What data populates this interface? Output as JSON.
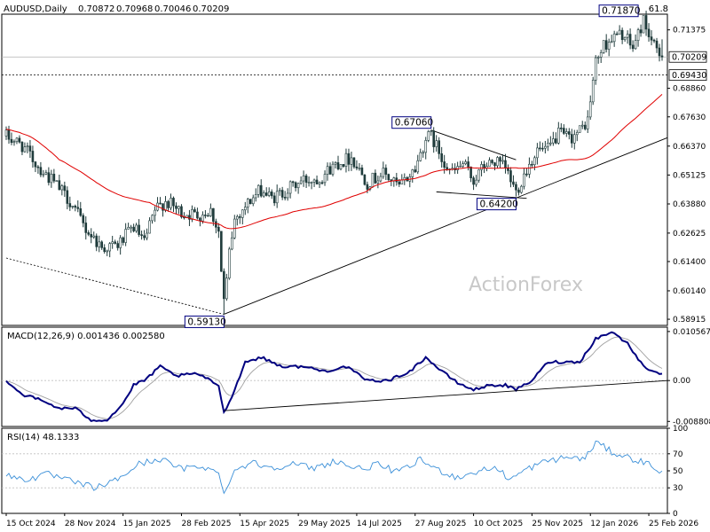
{
  "chart_data": {
    "type": "candlestick",
    "symbol_header": "AUDUSD,Daily",
    "ohlc_header": [
      "0.70872",
      "0.70968",
      "0.70046",
      "0.70209"
    ],
    "top_right_label": "61.8",
    "watermark": "ActionForex",
    "price_axis": {
      "ylim": [
        0.5865,
        0.7205
      ],
      "ticks": [
        "0.71375",
        "0.68860",
        "0.67630",
        "0.66370",
        "0.65125",
        "0.63880",
        "0.62625",
        "0.61400",
        "0.60140",
        "0.58915"
      ]
    },
    "current_price_tag": "0.70209",
    "retrace_level": {
      "value": 0.6943,
      "label": "0.69430"
    },
    "level_boxes": [
      {
        "value": 0.7187,
        "label": "0.71870"
      },
      {
        "value": 0.6706,
        "label": "0.67060"
      },
      {
        "value": 0.642,
        "label": "0.64200"
      },
      {
        "value": 0.5913,
        "label": "0.59130"
      }
    ],
    "x_axis_labels": [
      "15 Oct 2024",
      "28 Nov 2024",
      "15 Jan 2025",
      "28 Feb 2025",
      "15 Apr 2025",
      "29 May 2025",
      "14 Jul 2025",
      "27 Aug 2025",
      "10 Oct 2025",
      "25 Nov 2025",
      "12 Jan 2026",
      "25 Feb 2026"
    ],
    "price_path": [
      {
        "i": 0,
        "p": 0.668
      },
      {
        "i": 6,
        "p": 0.664
      },
      {
        "i": 12,
        "p": 0.655
      },
      {
        "i": 18,
        "p": 0.648
      },
      {
        "i": 24,
        "p": 0.64
      },
      {
        "i": 30,
        "p": 0.628
      },
      {
        "i": 36,
        "p": 0.62
      },
      {
        "i": 42,
        "p": 0.621
      },
      {
        "i": 48,
        "p": 0.629
      },
      {
        "i": 52,
        "p": 0.622
      },
      {
        "i": 56,
        "p": 0.636
      },
      {
        "i": 60,
        "p": 0.64
      },
      {
        "i": 66,
        "p": 0.635
      },
      {
        "i": 72,
        "p": 0.634
      },
      {
        "i": 77,
        "p": 0.636
      },
      {
        "i": 80,
        "p": 0.627
      },
      {
        "i": 82,
        "p": 0.592
      },
      {
        "i": 84,
        "p": 0.618
      },
      {
        "i": 86,
        "p": 0.632
      },
      {
        "i": 90,
        "p": 0.638
      },
      {
        "i": 96,
        "p": 0.645
      },
      {
        "i": 100,
        "p": 0.641
      },
      {
        "i": 106,
        "p": 0.645
      },
      {
        "i": 112,
        "p": 0.649
      },
      {
        "i": 118,
        "p": 0.65
      },
      {
        "i": 124,
        "p": 0.656
      },
      {
        "i": 130,
        "p": 0.659
      },
      {
        "i": 136,
        "p": 0.648
      },
      {
        "i": 142,
        "p": 0.652
      },
      {
        "i": 148,
        "p": 0.646
      },
      {
        "i": 154,
        "p": 0.654
      },
      {
        "i": 158,
        "p": 0.667
      },
      {
        "i": 160,
        "p": 0.668
      },
      {
        "i": 164,
        "p": 0.659
      },
      {
        "i": 168,
        "p": 0.652
      },
      {
        "i": 172,
        "p": 0.656
      },
      {
        "i": 176,
        "p": 0.649
      },
      {
        "i": 180,
        "p": 0.655
      },
      {
        "i": 184,
        "p": 0.657
      },
      {
        "i": 188,
        "p": 0.654
      },
      {
        "i": 192,
        "p": 0.644
      },
      {
        "i": 196,
        "p": 0.654
      },
      {
        "i": 200,
        "p": 0.662
      },
      {
        "i": 204,
        "p": 0.662
      },
      {
        "i": 208,
        "p": 0.669
      },
      {
        "i": 212,
        "p": 0.667
      },
      {
        "i": 216,
        "p": 0.67
      },
      {
        "i": 219,
        "p": 0.675
      },
      {
        "i": 222,
        "p": 0.7
      },
      {
        "i": 225,
        "p": 0.707
      },
      {
        "i": 228,
        "p": 0.71
      },
      {
        "i": 232,
        "p": 0.712
      },
      {
        "i": 236,
        "p": 0.706
      },
      {
        "i": 240,
        "p": 0.718
      },
      {
        "i": 244,
        "p": 0.706
      },
      {
        "i": 247,
        "p": 0.702
      }
    ],
    "macd": {
      "label": "MACD(12,26,9) 0.001436 0.002580",
      "ylim": [
        -0.0099,
        0.0115
      ],
      "ticks": [
        "0.010567",
        "0.00",
        "-0.008808"
      ],
      "path": [
        {
          "i": 0,
          "v": 0.0
        },
        {
          "i": 6,
          "v": -0.003
        },
        {
          "i": 12,
          "v": -0.004
        },
        {
          "i": 20,
          "v": -0.006
        },
        {
          "i": 26,
          "v": -0.006
        },
        {
          "i": 32,
          "v": -0.0085
        },
        {
          "i": 38,
          "v": -0.0085
        },
        {
          "i": 44,
          "v": -0.005
        },
        {
          "i": 48,
          "v": -0.001
        },
        {
          "i": 52,
          "v": 0.0
        },
        {
          "i": 58,
          "v": 0.003
        },
        {
          "i": 64,
          "v": 0.001
        },
        {
          "i": 72,
          "v": 0.0015
        },
        {
          "i": 80,
          "v": -0.001
        },
        {
          "i": 82,
          "v": -0.007
        },
        {
          "i": 86,
          "v": -0.002
        },
        {
          "i": 90,
          "v": 0.004
        },
        {
          "i": 96,
          "v": 0.005
        },
        {
          "i": 104,
          "v": 0.003
        },
        {
          "i": 112,
          "v": 0.003
        },
        {
          "i": 120,
          "v": 0.002
        },
        {
          "i": 128,
          "v": 0.003
        },
        {
          "i": 136,
          "v": 0.0
        },
        {
          "i": 144,
          "v": 0.0
        },
        {
          "i": 152,
          "v": 0.002
        },
        {
          "i": 158,
          "v": 0.005
        },
        {
          "i": 164,
          "v": 0.002
        },
        {
          "i": 170,
          "v": -0.0005
        },
        {
          "i": 176,
          "v": -0.002
        },
        {
          "i": 182,
          "v": -0.001
        },
        {
          "i": 188,
          "v": -0.001
        },
        {
          "i": 192,
          "v": -0.002
        },
        {
          "i": 198,
          "v": 0.0
        },
        {
          "i": 204,
          "v": 0.004
        },
        {
          "i": 210,
          "v": 0.004
        },
        {
          "i": 216,
          "v": 0.004
        },
        {
          "i": 222,
          "v": 0.009
        },
        {
          "i": 228,
          "v": 0.0105
        },
        {
          "i": 234,
          "v": 0.008
        },
        {
          "i": 240,
          "v": 0.003
        },
        {
          "i": 247,
          "v": 0.0014
        }
      ]
    },
    "rsi": {
      "label": "RSI(14) 48.1333",
      "ylim": [
        0,
        100
      ],
      "ticks": [
        "100",
        "70",
        "50",
        "30",
        "0"
      ],
      "path": [
        {
          "i": 0,
          "v": 44
        },
        {
          "i": 8,
          "v": 40
        },
        {
          "i": 16,
          "v": 46
        },
        {
          "i": 26,
          "v": 36
        },
        {
          "i": 34,
          "v": 30
        },
        {
          "i": 42,
          "v": 40
        },
        {
          "i": 50,
          "v": 58
        },
        {
          "i": 58,
          "v": 64
        },
        {
          "i": 66,
          "v": 52
        },
        {
          "i": 74,
          "v": 56
        },
        {
          "i": 80,
          "v": 46
        },
        {
          "i": 82,
          "v": 26
        },
        {
          "i": 86,
          "v": 50
        },
        {
          "i": 92,
          "v": 60
        },
        {
          "i": 100,
          "v": 54
        },
        {
          "i": 108,
          "v": 58
        },
        {
          "i": 116,
          "v": 53
        },
        {
          "i": 124,
          "v": 62
        },
        {
          "i": 132,
          "v": 52
        },
        {
          "i": 140,
          "v": 57
        },
        {
          "i": 148,
          "v": 48
        },
        {
          "i": 156,
          "v": 63
        },
        {
          "i": 162,
          "v": 52
        },
        {
          "i": 170,
          "v": 42
        },
        {
          "i": 176,
          "v": 48
        },
        {
          "i": 184,
          "v": 54
        },
        {
          "i": 190,
          "v": 40
        },
        {
          "i": 196,
          "v": 52
        },
        {
          "i": 204,
          "v": 62
        },
        {
          "i": 212,
          "v": 66
        },
        {
          "i": 218,
          "v": 64
        },
        {
          "i": 222,
          "v": 84
        },
        {
          "i": 228,
          "v": 72
        },
        {
          "i": 236,
          "v": 64
        },
        {
          "i": 242,
          "v": 58
        },
        {
          "i": 247,
          "v": 48
        }
      ]
    },
    "colors": {
      "candle": "#1f3b3b",
      "ma_line": "#e00000",
      "macd_line": "#000080",
      "signal_line": "#a0a0a0",
      "rsi_line": "#3a8fd8",
      "grid": "#c0c0c0",
      "level_box_border": "#000080"
    }
  }
}
